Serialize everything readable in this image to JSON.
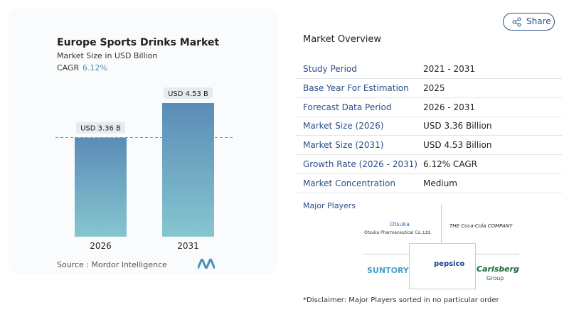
{
  "share": "Share",
  "chart_data": {
    "type": "bar",
    "title": "Europe Sports Drinks Market",
    "subtitle": "Market Size in USD Billion",
    "cagr_label": "CAGR",
    "cagr": "6.12%",
    "categories": [
      "2026",
      "2031"
    ],
    "values": [
      3.36,
      4.53
    ],
    "value_labels": [
      "USD 3.36 B",
      "USD 4.53 B"
    ],
    "color_top": "#5b8cb8",
    "color_bottom": "#86c6cf",
    "source": "Source :  Mordor Intelligence"
  },
  "overview": {
    "title": "Market Overview",
    "rows": [
      [
        "Study Period",
        "2021 - 2031"
      ],
      [
        "Base Year For Estimation",
        "2025"
      ],
      [
        "Forecast Data Period",
        "2026 - 2031"
      ],
      [
        "Market Size (2026)",
        "USD 3.36 Billion"
      ],
      [
        "Market Size (2031)",
        "USD 4.53 Billion"
      ],
      [
        "Growth Rate (2026 - 2031)",
        "6.12% CAGR"
      ],
      [
        "Market Concentration",
        "Medium"
      ]
    ]
  },
  "players": {
    "title": "Major Players",
    "logos": [
      "Otsuka",
      "Otsuka Pharmaceutical Co.,Ltd.",
      "THE Coca-Cola COMPANY",
      "SUNTORY",
      "pepsico",
      "Carlsberg",
      "Group"
    ],
    "disclaimer": "*Disclaimer: Major Players sorted in no particular order"
  }
}
